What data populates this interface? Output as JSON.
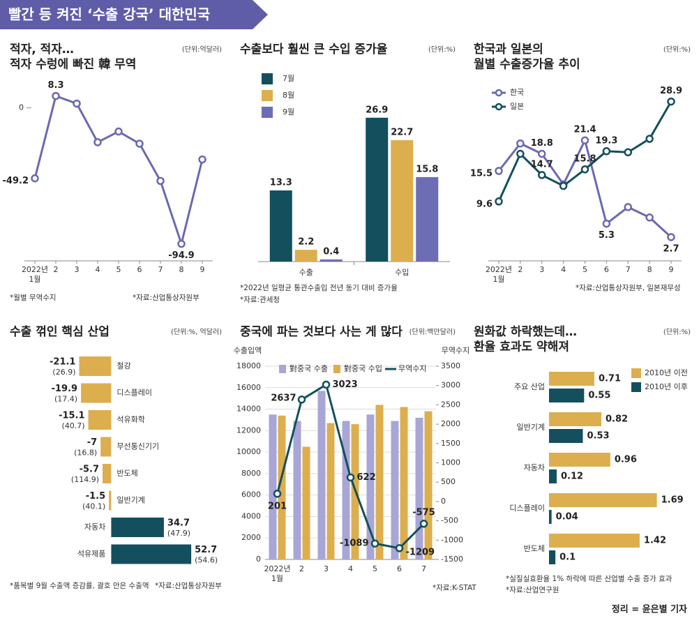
{
  "header": {
    "title": "빨간 등 켜진 ‘수출 강국’ 대한민국"
  },
  "chart_data": [
    {
      "type": "line",
      "title": "적자, 적자…\n적자 수렁에 빠진 韓 무역",
      "unit": "(단위:억달러)",
      "categories": [
        "2022년\n1월",
        "2",
        "3",
        "4",
        "5",
        "6",
        "7",
        "8",
        "9"
      ],
      "values": [
        -49.2,
        8.3,
        3,
        -24,
        -16.5,
        -25,
        -51,
        -94.9,
        -36
      ],
      "value_labels": [
        "-49.2",
        "8.3",
        null,
        null,
        null,
        null,
        null,
        "-94.9",
        null
      ],
      "color": "#6a69b0",
      "ylim": [
        -100,
        12
      ],
      "yticks": [
        0
      ],
      "footnotes": [
        "*월별 무역수지",
        "*자료:산업통상자원부"
      ]
    },
    {
      "type": "bar",
      "title": "수출보다 훨씬 큰 수입 증가율",
      "unit": "(단위:%)",
      "categories": [
        "수출",
        "수입"
      ],
      "series": [
        {
          "name": "7월",
          "color": "#134f5c",
          "values": [
            13.3,
            26.9
          ]
        },
        {
          "name": "8월",
          "color": "#dcae4e",
          "values": [
            2.2,
            22.7
          ]
        },
        {
          "name": "9월",
          "color": "#6d6db5",
          "values": [
            0.4,
            15.8
          ]
        }
      ],
      "ylim": [
        0,
        30
      ],
      "footnotes": [
        "*2022년 일평균 통관수출입 전년 동기 대비 증가율",
        "*자료:관세청"
      ]
    },
    {
      "type": "line",
      "title": "한국과 일본의\n월별 수출증가율 추이",
      "unit": "(단위:%)",
      "categories": [
        "2022년\n1월",
        "2",
        "3",
        "4",
        "5",
        "6",
        "7",
        "8",
        "9"
      ],
      "series": [
        {
          "name": "한국",
          "color": "#6a69b0",
          "values": [
            15.5,
            20.8,
            18.8,
            12.9,
            21.4,
            5.3,
            8.5,
            6.5,
            2.7
          ],
          "value_labels": [
            "15.5",
            null,
            "18.8",
            null,
            "21.4",
            "5.3",
            null,
            null,
            "2.7"
          ]
        },
        {
          "name": "일본",
          "color": "#134f5c",
          "values": [
            9.6,
            18.8,
            14.7,
            12.6,
            15.8,
            19.3,
            19.1,
            21.7,
            28.9
          ],
          "value_labels": [
            "9.6",
            null,
            "14.7",
            null,
            "15.8",
            "19.3",
            null,
            null,
            "28.9"
          ]
        }
      ],
      "ylim": [
        0,
        31
      ],
      "footnotes": [
        "*자료:산업통상자원부, 일본재무성"
      ]
    },
    {
      "type": "barh",
      "title": "수출 꺾인 핵심 산업",
      "unit": "(단위:%, 억달러)",
      "categories": [
        "철강",
        "디스플레이",
        "석유화학",
        "무선통신기기",
        "반도체",
        "일반기계",
        "자동차",
        "석유제품"
      ],
      "values": [
        -21.1,
        -19.9,
        -15.1,
        -7,
        -5.7,
        -1.5,
        34.7,
        52.7
      ],
      "amounts": [
        26.9,
        17.4,
        40.7,
        16.8,
        114.9,
        40.1,
        47.9,
        54.6
      ],
      "amount_labels": [
        "(26.9)",
        "(17.4)",
        "(40.7)",
        "(16.8)",
        "(114.9)",
        "(40.1)",
        "(47.9)",
        "(54.6)"
      ],
      "negative_color": "#dcae4e",
      "positive_color": "#134f5c",
      "xlim": [
        -25,
        60
      ],
      "footnotes": [
        "*품목별 9월 수출액 증감률, 괄호 안은 수출액",
        "*자료:산업통상자원부"
      ]
    },
    {
      "type": "combo",
      "title": "중국에 파는 것보다 사는 게 많다",
      "unit": "(단위:백만달러)",
      "ylabel": "수출입액",
      "y2label": "무역수지",
      "categories": [
        "2022년\n1월",
        "2",
        "3",
        "4",
        "5",
        "6",
        "7"
      ],
      "series": [
        {
          "name": "對중국 수출",
          "type": "bar",
          "color": "#a8a6d6",
          "values": [
            13500,
            12900,
            15700,
            12900,
            13500,
            12900,
            13200
          ]
        },
        {
          "name": "對중국 수입",
          "type": "bar",
          "color": "#dcae4e",
          "values": [
            13400,
            10500,
            12700,
            12600,
            14400,
            14200,
            13800
          ]
        },
        {
          "name": "무역수지",
          "type": "line",
          "axis": "y2",
          "color": "#134f5c",
          "values": [
            201,
            2637,
            3023,
            622,
            -1089,
            -1209,
            -575
          ]
        }
      ],
      "ylim": [
        0,
        18000
      ],
      "yticks": [
        0,
        2000,
        4000,
        6000,
        8000,
        10000,
        12000,
        14000,
        16000,
        18000
      ],
      "y2lim": [
        -1500,
        3500
      ],
      "y2ticks": [
        -1500,
        -1000,
        -500,
        0,
        500,
        1000,
        1500,
        2000,
        2500,
        3000,
        3500
      ],
      "grid": true,
      "footnotes": [
        "*자료:K-STAT"
      ]
    },
    {
      "type": "barh",
      "title": "원화값 하락했는데…\n환율 효과도 약해져",
      "unit": "(단위:%)",
      "categories": [
        "주요 산업",
        "일반기계",
        "자동차",
        "디스플레이",
        "반도체"
      ],
      "series": [
        {
          "name": "2010년 이전",
          "color": "#dcae4e",
          "values": [
            0.71,
            0.82,
            0.96,
            1.69,
            1.42
          ]
        },
        {
          "name": "2010년 이후",
          "color": "#134f5c",
          "values": [
            0.55,
            0.53,
            0.12,
            0.04,
            0.1
          ]
        }
      ],
      "xlim": [
        0,
        2
      ],
      "footnotes": [
        "*실질실효환율 1% 하락에 따른 산업별 수출 증가 효과",
        "*자료:산업연구원"
      ]
    }
  ],
  "credit": "정리 = 윤은별 기자"
}
